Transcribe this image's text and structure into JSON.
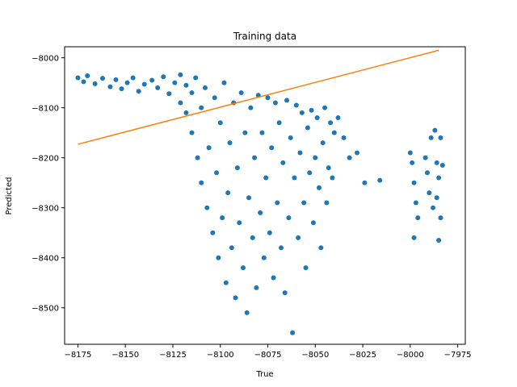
{
  "chart_data": {
    "type": "scatter",
    "title": "Training data",
    "xlabel": "True",
    "ylabel": "Predicted",
    "xlim": [
      -8182,
      -7971
    ],
    "ylim": [
      -8573,
      -7978
    ],
    "x_ticks": [
      -8175,
      -8150,
      -8125,
      -8100,
      -8075,
      -8050,
      -8025,
      -8000,
      -7975
    ],
    "y_ticks": [
      -8000,
      -8100,
      -8200,
      -8300,
      -8400,
      -8500
    ],
    "x_tick_labels": [
      "−8175",
      "−8150",
      "−8125",
      "−8100",
      "−8075",
      "−8050",
      "−8025",
      "−8000",
      "−7975"
    ],
    "y_tick_labels": [
      "−8000",
      "−8100",
      "−8200",
      "−8300",
      "−8400",
      "−8500"
    ],
    "grid": false,
    "colors": {
      "scatter": "#1f77b4",
      "line": "#ff7f0e"
    },
    "series": [
      {
        "kind": "scatter",
        "points": [
          [
            -8175,
            -8040
          ],
          [
            -8172,
            -8048
          ],
          [
            -8170,
            -8036
          ],
          [
            -8166,
            -8052
          ],
          [
            -8162,
            -8041
          ],
          [
            -8158,
            -8058
          ],
          [
            -8155,
            -8044
          ],
          [
            -8152,
            -8062
          ],
          [
            -8149,
            -8050
          ],
          [
            -8146,
            -8040
          ],
          [
            -8143,
            -8067
          ],
          [
            -8140,
            -8053
          ],
          [
            -8136,
            -8045
          ],
          [
            -8133,
            -8060
          ],
          [
            -8130,
            -8038
          ],
          [
            -8127,
            -8072
          ],
          [
            -8124,
            -8050
          ],
          [
            -8121,
            -8034
          ],
          [
            -8121,
            -8090
          ],
          [
            -8118,
            -8055
          ],
          [
            -8118,
            -8110
          ],
          [
            -8115,
            -8070
          ],
          [
            -8115,
            -8150
          ],
          [
            -8113,
            -8040
          ],
          [
            -8112,
            -8200
          ],
          [
            -8110,
            -8100
          ],
          [
            -8110,
            -8250
          ],
          [
            -8108,
            -8060
          ],
          [
            -8107,
            -8300
          ],
          [
            -8106,
            -8180
          ],
          [
            -8104,
            -8350
          ],
          [
            -8103,
            -8080
          ],
          [
            -8102,
            -8230
          ],
          [
            -8101,
            -8400
          ],
          [
            -8100,
            -8130
          ],
          [
            -8099,
            -8320
          ],
          [
            -8098,
            -8050
          ],
          [
            -8097,
            -8450
          ],
          [
            -8096,
            -8270
          ],
          [
            -8095,
            -8170
          ],
          [
            -8094,
            -8380
          ],
          [
            -8093,
            -8090
          ],
          [
            -8092,
            -8480
          ],
          [
            -8091,
            -8220
          ],
          [
            -8090,
            -8330
          ],
          [
            -8089,
            -8070
          ],
          [
            -8088,
            -8420
          ],
          [
            -8087,
            -8150
          ],
          [
            -8086,
            -8510
          ],
          [
            -8085,
            -8280
          ],
          [
            -8084,
            -8100
          ],
          [
            -8083,
            -8360
          ],
          [
            -8082,
            -8200
          ],
          [
            -8081,
            -8460
          ],
          [
            -8080,
            -8075
          ],
          [
            -8079,
            -8310
          ],
          [
            -8078,
            -8150
          ],
          [
            -8077,
            -8400
          ],
          [
            -8076,
            -8240
          ],
          [
            -8075,
            -8080
          ],
          [
            -8074,
            -8350
          ],
          [
            -8073,
            -8180
          ],
          [
            -8072,
            -8440
          ],
          [
            -8071,
            -8090
          ],
          [
            -8070,
            -8290
          ],
          [
            -8069,
            -8130
          ],
          [
            -8068,
            -8380
          ],
          [
            -8067,
            -8210
          ],
          [
            -8066,
            -8470
          ],
          [
            -8065,
            -8085
          ],
          [
            -8064,
            -8320
          ],
          [
            -8063,
            -8160
          ],
          [
            -8062,
            -8550
          ],
          [
            -8061,
            -8240
          ],
          [
            -8060,
            -8095
          ],
          [
            -8059,
            -8360
          ],
          [
            -8058,
            -8190
          ],
          [
            -8057,
            -8110
          ],
          [
            -8056,
            -8290
          ],
          [
            -8055,
            -8420
          ],
          [
            -8054,
            -8140
          ],
          [
            -8053,
            -8230
          ],
          [
            -8052,
            -8105
          ],
          [
            -8051,
            -8330
          ],
          [
            -8050,
            -8200
          ],
          [
            -8049,
            -8120
          ],
          [
            -8048,
            -8260
          ],
          [
            -8047,
            -8380
          ],
          [
            -8046,
            -8170
          ],
          [
            -8045,
            -8100
          ],
          [
            -8044,
            -8290
          ],
          [
            -8043,
            -8220
          ],
          [
            -8042,
            -8130
          ],
          [
            -8041,
            -8240
          ],
          [
            -8040,
            -8150
          ],
          [
            -8038,
            -8120
          ],
          [
            -8035,
            -8160
          ],
          [
            -8032,
            -8200
          ],
          [
            -8028,
            -8190
          ],
          [
            -8024,
            -8250
          ],
          [
            -8016,
            -8245
          ],
          [
            -8000,
            -8190
          ],
          [
            -7999,
            -8210
          ],
          [
            -7998,
            -8250
          ],
          [
            -7998,
            -8360
          ],
          [
            -7997,
            -8290
          ],
          [
            -7996,
            -8320
          ],
          [
            -7992,
            -8200
          ],
          [
            -7991,
            -8230
          ],
          [
            -7990,
            -8270
          ],
          [
            -7989,
            -8160
          ],
          [
            -7988,
            -8300
          ],
          [
            -7987,
            -8145
          ],
          [
            -7986,
            -8210
          ],
          [
            -7986,
            -8280
          ],
          [
            -7985,
            -8365
          ],
          [
            -7985,
            -8240
          ],
          [
            -7984,
            -8160
          ],
          [
            -7984,
            -8320
          ],
          [
            -7983,
            -8215
          ]
        ]
      },
      {
        "kind": "line",
        "points": [
          [
            -8175,
            -8173
          ],
          [
            -7985,
            -7985
          ]
        ]
      }
    ]
  }
}
